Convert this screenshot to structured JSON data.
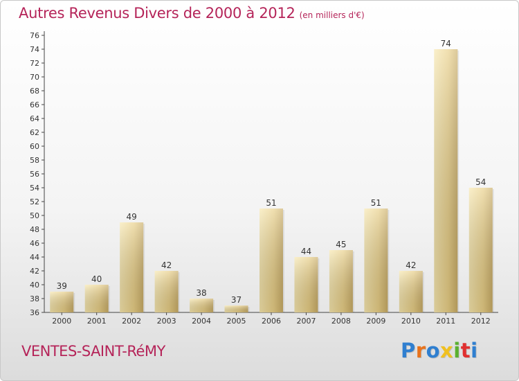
{
  "header": {
    "title": "Autres Revenus Divers de 2000 à 2012",
    "unit": "(en milliers d'€)"
  },
  "footer": {
    "commune": "VENTES-SAINT-RéMY",
    "logo_text": "Proxiti",
    "logo_colors": [
      "#2f7fd0",
      "#e8731c",
      "#2f7fd0",
      "#f0c020",
      "#5ab030",
      "#e03030",
      "#2f7fd0"
    ]
  },
  "chart_data": {
    "type": "bar",
    "title": "Autres Revenus Divers de 2000 à 2012",
    "subtitle": "(en milliers d'€)",
    "xlabel": "",
    "ylabel": "",
    "categories": [
      "2000",
      "2001",
      "2002",
      "2003",
      "2004",
      "2005",
      "2006",
      "2007",
      "2008",
      "2009",
      "2010",
      "2011",
      "2012"
    ],
    "values": [
      39,
      40,
      49,
      42,
      38,
      37,
      51,
      44,
      45,
      51,
      42,
      74,
      54
    ],
    "ylim": [
      36,
      76
    ],
    "ytick_step": 2,
    "grid": false,
    "legend": "none",
    "colors": {
      "bar_light": "#f5e3a4",
      "bar_dark": "#c9ac65",
      "axis": "#444444",
      "label": "#333333"
    }
  }
}
